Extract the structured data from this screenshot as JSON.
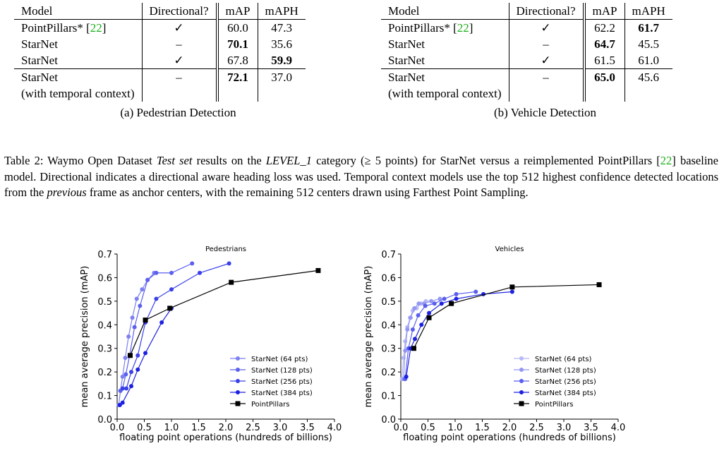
{
  "table_a": {
    "headers": [
      "Model",
      "Directional?",
      "mAP",
      "mAPH"
    ],
    "rows": [
      {
        "model": "PointPillars*",
        "cite": "22",
        "dir": "✓",
        "map": "60.0",
        "maph": "47.3",
        "bold_map": false,
        "bold_maph": false
      },
      {
        "model": "StarNet",
        "cite": "",
        "dir": "–",
        "map": "70.1",
        "maph": "35.6",
        "bold_map": true,
        "bold_maph": false
      },
      {
        "model": "StarNet",
        "cite": "",
        "dir": "✓",
        "map": "67.8",
        "maph": "59.9",
        "bold_map": false,
        "bold_maph": true
      },
      {
        "model": "StarNet",
        "model2": "(with temporal context)",
        "cite": "",
        "dir": "–",
        "map": "72.1",
        "maph": "37.0",
        "bold_map": true,
        "bold_maph": false
      }
    ],
    "caption": "(a) Pedestrian Detection"
  },
  "table_b": {
    "headers": [
      "Model",
      "Directional?",
      "mAP",
      "mAPH"
    ],
    "rows": [
      {
        "model": "PointPillars*",
        "cite": "22",
        "dir": "✓",
        "map": "62.2",
        "maph": "61.7",
        "bold_map": false,
        "bold_maph": true
      },
      {
        "model": "StarNet",
        "cite": "",
        "dir": "–",
        "map": "64.7",
        "maph": "45.5",
        "bold_map": true,
        "bold_maph": false
      },
      {
        "model": "StarNet",
        "cite": "",
        "dir": "✓",
        "map": "61.5",
        "maph": "61.0",
        "bold_map": false,
        "bold_maph": false
      },
      {
        "model": "StarNet",
        "model2": "(with temporal context)",
        "cite": "",
        "dir": "–",
        "map": "65.0",
        "maph": "45.6",
        "bold_map": true,
        "bold_maph": false
      }
    ],
    "caption": "(b) Vehicle Detection"
  },
  "caption": {
    "label": "Table 2:",
    "t1": " Waymo Open Dataset ",
    "t2": "Test set",
    "t3": " results on the ",
    "t4": "LEVEL_1",
    "t5": " category (≥ 5 points) for StarNet versus a reimplemented PointPillars [",
    "cite": "22",
    "t6": "] baseline model. Directional indicates a directional aware heading loss was used. Temporal context models use the top 512 highest confidence detected locations from the ",
    "t7": "previous",
    "t8": " frame as anchor centers, with the remaining 512 centers drawn using Farthest Point Sampling."
  },
  "chart_data": [
    {
      "type": "line",
      "title": "Pedestrians",
      "xlabel": "floating point operations (hundreds of billions)",
      "ylabel": "mean average precision (mAP)",
      "xlim": [
        0,
        4.0
      ],
      "ylim": [
        0,
        0.7
      ],
      "xticks": [
        "0.0",
        "0.5",
        "1.0",
        "1.5",
        "2.0",
        "2.5",
        "3.0",
        "3.5",
        "4.0"
      ],
      "yticks": [
        "0.0",
        "0.1",
        "0.2",
        "0.3",
        "0.4",
        "0.5",
        "0.6",
        "0.7"
      ],
      "legend_position": "lower-right",
      "series": [
        {
          "name": "StarNet (64 pts)",
          "color": "#7b80f0",
          "marker": "circle",
          "x": [
            0.03,
            0.06,
            0.1,
            0.15,
            0.21,
            0.28,
            0.36,
            0.46,
            0.56,
            0.68
          ],
          "y": [
            0.06,
            0.12,
            0.18,
            0.26,
            0.35,
            0.43,
            0.51,
            0.55,
            0.59,
            0.62
          ]
        },
        {
          "name": "StarNet (128 pts)",
          "color": "#5b60ee",
          "marker": "circle",
          "x": [
            0.06,
            0.1,
            0.16,
            0.23,
            0.32,
            0.42,
            0.56,
            0.72,
            1.0,
            1.38
          ],
          "y": [
            0.12,
            0.13,
            0.19,
            0.27,
            0.39,
            0.48,
            0.59,
            0.62,
            0.62,
            0.66
          ]
        },
        {
          "name": "StarNet (256 pts)",
          "color": "#3a40e8",
          "marker": "circle",
          "x": [
            0.1,
            0.17,
            0.26,
            0.38,
            0.52,
            0.72,
            1.0,
            1.52,
            2.06
          ],
          "y": [
            0.13,
            0.13,
            0.2,
            0.27,
            0.41,
            0.51,
            0.55,
            0.62,
            0.66
          ]
        },
        {
          "name": "StarNet (384 pts)",
          "color": "#1c20e0",
          "marker": "circle",
          "x": [
            0.05,
            0.1,
            0.26,
            0.38,
            0.52,
            0.82,
            1.0
          ],
          "y": [
            0.06,
            0.07,
            0.14,
            0.21,
            0.28,
            0.41,
            0.47
          ]
        },
        {
          "name": "PointPillars",
          "color": "#000000",
          "marker": "square",
          "x": [
            0.24,
            0.52,
            0.97,
            2.1,
            3.7
          ],
          "y": [
            0.27,
            0.42,
            0.47,
            0.58,
            0.63
          ]
        }
      ]
    },
    {
      "type": "line",
      "title": "Vehicles",
      "xlabel": "floating point operations (hundreds of billions)",
      "ylabel": "mean average precision (mAP)",
      "xlim": [
        0,
        4.0
      ],
      "ylim": [
        0,
        0.7
      ],
      "xticks": [
        "0.0",
        "0.5",
        "1.0",
        "1.5",
        "2.0",
        "2.5",
        "3.0",
        "3.5",
        "4.0"
      ],
      "yticks": [
        "0.0",
        "0.1",
        "0.2",
        "0.3",
        "0.4",
        "0.5",
        "0.6",
        "0.7"
      ],
      "legend_position": "lower-right",
      "series": [
        {
          "name": "StarNet (64 pts)",
          "color": "#b6b9f6",
          "marker": "circle",
          "x": [
            0.02,
            0.05,
            0.08,
            0.12,
            0.17,
            0.22,
            0.29,
            0.37,
            0.46,
            0.56
          ],
          "y": [
            0.17,
            0.26,
            0.33,
            0.39,
            0.43,
            0.46,
            0.47,
            0.49,
            0.5,
            0.5
          ]
        },
        {
          "name": "StarNet (128 pts)",
          "color": "#9497f2",
          "marker": "circle",
          "x": [
            0.05,
            0.08,
            0.12,
            0.18,
            0.25,
            0.33,
            0.43,
            0.56,
            0.72
          ],
          "y": [
            0.17,
            0.29,
            0.38,
            0.43,
            0.47,
            0.49,
            0.49,
            0.5,
            0.51
          ]
        },
        {
          "name": "StarNet (256 pts)",
          "color": "#5a5eee",
          "marker": "circle",
          "x": [
            0.08,
            0.14,
            0.22,
            0.32,
            0.45,
            0.62,
            0.8,
            1.02,
            1.38
          ],
          "y": [
            0.17,
            0.3,
            0.38,
            0.44,
            0.48,
            0.49,
            0.51,
            0.53,
            0.54
          ]
        },
        {
          "name": "StarNet (384 pts)",
          "color": "#1c20e0",
          "marker": "circle",
          "x": [
            0.1,
            0.18,
            0.26,
            0.38,
            0.52,
            0.75,
            1.02,
            1.52,
            2.05
          ],
          "y": [
            0.18,
            0.3,
            0.34,
            0.4,
            0.45,
            0.49,
            0.51,
            0.53,
            0.54
          ]
        },
        {
          "name": "PointPillars",
          "color": "#000000",
          "marker": "square",
          "x": [
            0.24,
            0.52,
            0.93,
            2.05,
            3.65
          ],
          "y": [
            0.3,
            0.43,
            0.49,
            0.56,
            0.57
          ]
        }
      ]
    }
  ]
}
